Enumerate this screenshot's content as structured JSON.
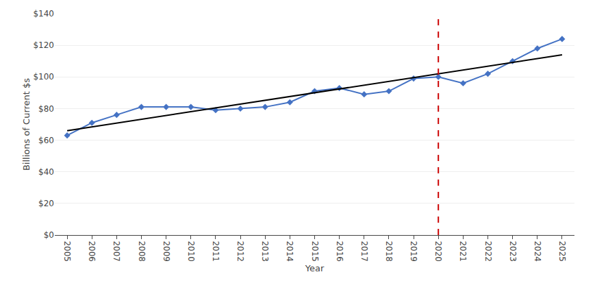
{
  "chart_data": {
    "type": "line",
    "xlabel": "Year",
    "ylabel": "Billions of Current $s",
    "x": [
      2005,
      2006,
      2007,
      2008,
      2009,
      2010,
      2011,
      2012,
      2013,
      2014,
      2015,
      2016,
      2017,
      2018,
      2019,
      2020,
      2021,
      2022,
      2023,
      2024,
      2025
    ],
    "series": [
      {
        "color": "#4472C4",
        "marker": "diamond",
        "line_style": "solid",
        "values": [
          63,
          71,
          76,
          81,
          81,
          81,
          79,
          80,
          81,
          84,
          91,
          93,
          89,
          91,
          99,
          100,
          96,
          102,
          110,
          118,
          124
        ]
      },
      {
        "color": "#000000",
        "line_style": "solid",
        "x": [
          2005,
          2025
        ],
        "values": [
          66,
          114
        ]
      }
    ],
    "vlines": [
      {
        "x": 2020,
        "color": "#cc0000",
        "line_style": "dash"
      }
    ],
    "xlim": [
      2004.5,
      2025.5
    ],
    "xticks": [
      2005,
      2006,
      2007,
      2008,
      2009,
      2010,
      2011,
      2012,
      2013,
      2014,
      2015,
      2016,
      2017,
      2018,
      2019,
      2020,
      2021,
      2022,
      2023,
      2024,
      2025
    ],
    "ylim": [
      0,
      140
    ],
    "yticks": [
      {
        "value": 0,
        "label": "$0"
      },
      {
        "value": 20,
        "label": "$20"
      },
      {
        "value": 40,
        "label": "$40"
      },
      {
        "value": 60,
        "label": "$60"
      },
      {
        "value": 80,
        "label": "$80"
      },
      {
        "value": 100,
        "label": "$100"
      },
      {
        "value": 120,
        "label": "$120"
      },
      {
        "value": 140,
        "label": "$140"
      }
    ],
    "grid": "y"
  }
}
